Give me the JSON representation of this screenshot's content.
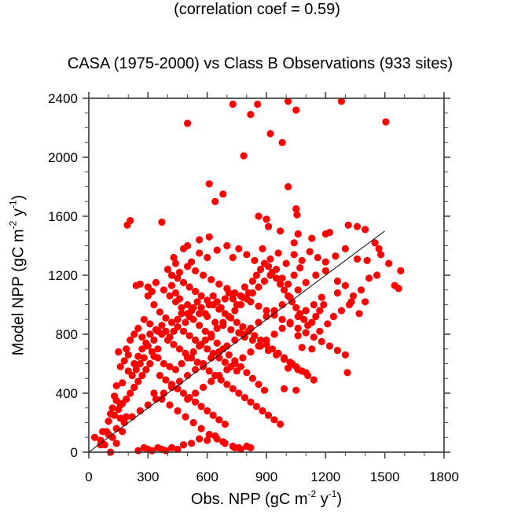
{
  "chart_data": {
    "type": "scatter",
    "subtitle": "(correlation coef =  0.59)",
    "title": "CASA (1975-2000) vs Class B Observations (933 sites)",
    "xlabel": {
      "main": "Obs. NPP (gC m",
      "exp1": "-2",
      "mid": " y",
      "exp2": "-1",
      "end": ")"
    },
    "ylabel": {
      "main": "Model NPP (gC m",
      "exp1": "-2",
      "mid": " y",
      "exp2": "-1",
      "end": ")"
    },
    "xlim": [
      0,
      1800
    ],
    "ylim": [
      0,
      2400
    ],
    "x_ticks": [
      0,
      300,
      600,
      900,
      1200,
      1500,
      1800
    ],
    "x_tick_labels": [
      "0",
      "300",
      "600",
      "900",
      "1200",
      "1500",
      "1800"
    ],
    "y_ticks": [
      0,
      400,
      800,
      1200,
      1600,
      2000,
      2400
    ],
    "y_tick_labels": [
      "0",
      "400",
      "800",
      "1200",
      "1600",
      "2000",
      "2400"
    ],
    "x_minor_step": 100,
    "y_minor_step": 100,
    "grid": false,
    "marker_color": "#ff0000",
    "line_color": "#000000",
    "one_to_one_line": {
      "x": [
        0,
        1500
      ],
      "y": [
        0,
        1500
      ]
    },
    "correlation_coef": 0.59,
    "n_sites": 933,
    "points": [
      [
        730,
        2360
      ],
      [
        855,
        2360
      ],
      [
        1010,
        2380
      ],
      [
        1050,
        2320
      ],
      [
        1280,
        2380
      ],
      [
        500,
        2230
      ],
      [
        820,
        2290
      ],
      [
        920,
        2160
      ],
      [
        980,
        2100
      ],
      [
        785,
        2010
      ],
      [
        1505,
        2240
      ],
      [
        1010,
        1800
      ],
      [
        610,
        1820
      ],
      [
        680,
        1750
      ],
      [
        640,
        1700
      ],
      [
        1050,
        1650
      ],
      [
        1055,
        1610
      ],
      [
        210,
        1570
      ],
      [
        195,
        1540
      ],
      [
        1315,
        1540
      ],
      [
        1360,
        1530
      ],
      [
        1400,
        1510
      ],
      [
        1220,
        1490
      ],
      [
        1200,
        1480
      ],
      [
        370,
        1560
      ],
      [
        860,
        1600
      ],
      [
        900,
        1580
      ],
      [
        910,
        1530
      ],
      [
        970,
        1500
      ],
      [
        1060,
        1480
      ],
      [
        1130,
        1450
      ],
      [
        1040,
        1420
      ],
      [
        560,
        1440
      ],
      [
        610,
        1460
      ],
      [
        500,
        1400
      ],
      [
        480,
        1380
      ],
      [
        430,
        1320
      ],
      [
        440,
        1280
      ],
      [
        520,
        1290
      ],
      [
        560,
        1350
      ],
      [
        600,
        1320
      ],
      [
        650,
        1370
      ],
      [
        700,
        1400
      ],
      [
        730,
        1320
      ],
      [
        760,
        1380
      ],
      [
        800,
        1340
      ],
      [
        840,
        1300
      ],
      [
        880,
        1380
      ],
      [
        920,
        1310
      ],
      [
        960,
        1350
      ],
      [
        1000,
        1280
      ],
      [
        1040,
        1340
      ],
      [
        1080,
        1300
      ],
      [
        1120,
        1360
      ],
      [
        1160,
        1320
      ],
      [
        1200,
        1290
      ],
      [
        1250,
        1330
      ],
      [
        1300,
        1380
      ],
      [
        1360,
        1310
      ],
      [
        1410,
        1300
      ],
      [
        1450,
        1420
      ],
      [
        1470,
        1380
      ],
      [
        1480,
        1340
      ],
      [
        1520,
        1280
      ],
      [
        1580,
        1230
      ],
      [
        1550,
        1130
      ],
      [
        1570,
        1110
      ],
      [
        1460,
        1200
      ],
      [
        1420,
        1180
      ],
      [
        1380,
        1100
      ],
      [
        1300,
        1130
      ],
      [
        1260,
        1080
      ],
      [
        1330,
        1020
      ],
      [
        1400,
        1020
      ],
      [
        1370,
        940
      ],
      [
        1260,
        1160
      ],
      [
        1200,
        1230
      ],
      [
        1150,
        1200
      ],
      [
        1100,
        1150
      ],
      [
        1060,
        1100
      ],
      [
        1020,
        1050
      ],
      [
        980,
        1000
      ],
      [
        940,
        960
      ],
      [
        900,
        920
      ],
      [
        860,
        880
      ],
      [
        820,
        840
      ],
      [
        780,
        800
      ],
      [
        740,
        760
      ],
      [
        700,
        720
      ],
      [
        660,
        680
      ],
      [
        620,
        640
      ],
      [
        580,
        600
      ],
      [
        540,
        560
      ],
      [
        500,
        520
      ],
      [
        460,
        480
      ],
      [
        420,
        440
      ],
      [
        380,
        400
      ],
      [
        340,
        360
      ],
      [
        300,
        320
      ],
      [
        260,
        280
      ],
      [
        220,
        240
      ],
      [
        180,
        200
      ],
      [
        140,
        160
      ],
      [
        100,
        120
      ],
      [
        60,
        80
      ],
      [
        30,
        100
      ],
      [
        90,
        140
      ],
      [
        120,
        300
      ],
      [
        140,
        350
      ],
      [
        160,
        320
      ],
      [
        190,
        240
      ],
      [
        130,
        380
      ],
      [
        170,
        470
      ],
      [
        200,
        550
      ],
      [
        230,
        600
      ],
      [
        250,
        650
      ],
      [
        270,
        700
      ],
      [
        300,
        720
      ],
      [
        320,
        680
      ],
      [
        350,
        640
      ],
      [
        380,
        600
      ],
      [
        410,
        580
      ],
      [
        440,
        560
      ],
      [
        470,
        600
      ],
      [
        500,
        640
      ],
      [
        530,
        680
      ],
      [
        560,
        720
      ],
      [
        590,
        760
      ],
      [
        620,
        800
      ],
      [
        650,
        840
      ],
      [
        680,
        880
      ],
      [
        710,
        920
      ],
      [
        740,
        960
      ],
      [
        770,
        1000
      ],
      [
        800,
        1040
      ],
      [
        830,
        1080
      ],
      [
        860,
        1120
      ],
      [
        890,
        1160
      ],
      [
        920,
        1200
      ],
      [
        950,
        1240
      ],
      [
        980,
        1180
      ],
      [
        1010,
        1140
      ],
      [
        1040,
        1200
      ],
      [
        1070,
        1250
      ],
      [
        280,
        900
      ],
      [
        310,
        870
      ],
      [
        340,
        830
      ],
      [
        370,
        800
      ],
      [
        400,
        760
      ],
      [
        430,
        730
      ],
      [
        460,
        700
      ],
      [
        490,
        670
      ],
      [
        520,
        640
      ],
      [
        550,
        610
      ],
      [
        580,
        580
      ],
      [
        610,
        550
      ],
      [
        640,
        520
      ],
      [
        670,
        490
      ],
      [
        700,
        460
      ],
      [
        730,
        430
      ],
      [
        760,
        400
      ],
      [
        790,
        370
      ],
      [
        820,
        340
      ],
      [
        850,
        310
      ],
      [
        880,
        280
      ],
      [
        910,
        250
      ],
      [
        940,
        220
      ],
      [
        970,
        190
      ],
      [
        260,
        1140
      ],
      [
        240,
        1130
      ],
      [
        300,
        1060
      ],
      [
        330,
        1000
      ],
      [
        360,
        950
      ],
      [
        390,
        910
      ],
      [
        420,
        880
      ],
      [
        450,
        850
      ],
      [
        480,
        820
      ],
      [
        510,
        790
      ],
      [
        540,
        760
      ],
      [
        570,
        730
      ],
      [
        600,
        700
      ],
      [
        630,
        670
      ],
      [
        660,
        640
      ],
      [
        690,
        610
      ],
      [
        720,
        580
      ],
      [
        750,
        550
      ],
      [
        450,
        1180
      ],
      [
        480,
        1150
      ],
      [
        510,
        1120
      ],
      [
        540,
        1090
      ],
      [
        570,
        1060
      ],
      [
        600,
        1030
      ],
      [
        630,
        1000
      ],
      [
        660,
        970
      ],
      [
        690,
        940
      ],
      [
        720,
        910
      ],
      [
        750,
        880
      ],
      [
        780,
        850
      ],
      [
        810,
        820
      ],
      [
        840,
        790
      ],
      [
        870,
        760
      ],
      [
        900,
        730
      ],
      [
        930,
        700
      ],
      [
        960,
        670
      ],
      [
        990,
        640
      ],
      [
        1020,
        610
      ],
      [
        1050,
        580
      ],
      [
        1080,
        550
      ],
      [
        1110,
        520
      ],
      [
        1140,
        490
      ],
      [
        400,
        1240
      ],
      [
        420,
        1200
      ],
      [
        460,
        1220
      ],
      [
        500,
        1260
      ],
      [
        540,
        1230
      ],
      [
        580,
        1200
      ],
      [
        620,
        1170
      ],
      [
        660,
        1140
      ],
      [
        700,
        1110
      ],
      [
        740,
        1080
      ],
      [
        780,
        1050
      ],
      [
        820,
        1020
      ],
      [
        860,
        990
      ],
      [
        900,
        960
      ],
      [
        940,
        930
      ],
      [
        980,
        900
      ],
      [
        1020,
        870
      ],
      [
        1060,
        840
      ],
      [
        1100,
        810
      ],
      [
        1140,
        780
      ],
      [
        1180,
        750
      ],
      [
        1220,
        720
      ],
      [
        1260,
        690
      ],
      [
        1300,
        660
      ],
      [
        380,
        1100
      ],
      [
        410,
        1060
      ],
      [
        440,
        1020
      ],
      [
        470,
        980
      ],
      [
        500,
        940
      ],
      [
        530,
        900
      ],
      [
        560,
        860
      ],
      [
        590,
        820
      ],
      [
        620,
        780
      ],
      [
        650,
        740
      ],
      [
        680,
        700
      ],
      [
        710,
        660
      ],
      [
        740,
        620
      ],
      [
        770,
        580
      ],
      [
        800,
        540
      ],
      [
        830,
        500
      ],
      [
        860,
        460
      ],
      [
        890,
        420
      ],
      [
        350,
        700
      ],
      [
        330,
        650
      ],
      [
        310,
        600
      ],
      [
        290,
        560
      ],
      [
        270,
        520
      ],
      [
        250,
        480
      ],
      [
        230,
        440
      ],
      [
        210,
        400
      ],
      [
        190,
        360
      ],
      [
        170,
        330
      ],
      [
        150,
        290
      ],
      [
        130,
        250
      ],
      [
        360,
        520
      ],
      [
        390,
        490
      ],
      [
        420,
        460
      ],
      [
        450,
        430
      ],
      [
        480,
        400
      ],
      [
        510,
        370
      ],
      [
        540,
        340
      ],
      [
        570,
        310
      ],
      [
        600,
        280
      ],
      [
        630,
        250
      ],
      [
        660,
        220
      ],
      [
        690,
        190
      ],
      [
        330,
        400
      ],
      [
        370,
        360
      ],
      [
        410,
        320
      ],
      [
        450,
        280
      ],
      [
        490,
        240
      ],
      [
        530,
        200
      ],
      [
        570,
        160
      ],
      [
        610,
        120
      ],
      [
        650,
        90
      ],
      [
        690,
        60
      ],
      [
        730,
        40
      ],
      [
        760,
        30
      ],
      [
        800,
        40
      ],
      [
        820,
        30
      ],
      [
        740,
        30
      ],
      [
        770,
        20
      ],
      [
        250,
        10
      ],
      [
        280,
        30
      ],
      [
        300,
        20
      ],
      [
        320,
        10
      ],
      [
        350,
        30
      ],
      [
        370,
        20
      ],
      [
        390,
        10
      ],
      [
        420,
        30
      ],
      [
        450,
        20
      ],
      [
        480,
        50
      ],
      [
        520,
        60
      ],
      [
        560,
        90
      ],
      [
        600,
        80
      ],
      [
        640,
        110
      ],
      [
        680,
        70
      ],
      [
        110,
        0
      ],
      [
        100,
        120
      ],
      [
        80,
        50
      ],
      [
        120,
        100
      ],
      [
        140,
        60
      ],
      [
        170,
        140
      ],
      [
        60,
        50
      ],
      [
        70,
        140
      ],
      [
        100,
        210
      ],
      [
        110,
        260
      ],
      [
        160,
        230
      ],
      [
        300,
        1120
      ],
      [
        320,
        1090
      ],
      [
        340,
        1150
      ],
      [
        420,
        1130
      ],
      [
        440,
        1080
      ],
      [
        460,
        1040
      ],
      [
        500,
        1000
      ],
      [
        520,
        960
      ],
      [
        560,
        940
      ],
      [
        600,
        920
      ],
      [
        640,
        880
      ],
      [
        680,
        860
      ],
      [
        720,
        830
      ],
      [
        760,
        810
      ],
      [
        790,
        780
      ],
      [
        830,
        760
      ],
      [
        870,
        720
      ],
      [
        910,
        690
      ],
      [
        950,
        660
      ],
      [
        990,
        630
      ],
      [
        1030,
        600
      ],
      [
        1060,
        560
      ],
      [
        1100,
        540
      ],
      [
        1130,
        700
      ],
      [
        1170,
        820
      ],
      [
        1210,
        870
      ],
      [
        1240,
        920
      ],
      [
        1280,
        960
      ],
      [
        1320,
        1000
      ],
      [
        1340,
        1060
      ],
      [
        1180,
        1050
      ],
      [
        1140,
        1000
      ],
      [
        1100,
        960
      ],
      [
        1060,
        920
      ],
      [
        1020,
        880
      ],
      [
        980,
        840
      ],
      [
        940,
        800
      ],
      [
        900,
        760
      ],
      [
        860,
        720
      ],
      [
        820,
        680
      ],
      [
        780,
        640
      ],
      [
        740,
        600
      ],
      [
        700,
        560
      ],
      [
        660,
        520
      ],
      [
        620,
        480
      ],
      [
        580,
        440
      ],
      [
        540,
        400
      ],
      [
        500,
        360
      ],
      [
        1310,
        540
      ],
      [
        1050,
        420
      ],
      [
        1080,
        710
      ],
      [
        990,
        430
      ],
      [
        1010,
        570
      ],
      [
        1060,
        790
      ],
      [
        280,
        640
      ],
      [
        260,
        600
      ],
      [
        240,
        560
      ],
      [
        220,
        520
      ],
      [
        200,
        660
      ],
      [
        180,
        620
      ],
      [
        160,
        580
      ],
      [
        150,
        680
      ],
      [
        140,
        450
      ],
      [
        190,
        700
      ],
      [
        210,
        760
      ],
      [
        230,
        800
      ],
      [
        250,
        840
      ],
      [
        270,
        780
      ],
      [
        290,
        740
      ],
      [
        310,
        800
      ],
      [
        330,
        760
      ],
      [
        350,
        820
      ],
      [
        370,
        860
      ],
      [
        390,
        820
      ],
      [
        410,
        780
      ],
      [
        430,
        820
      ],
      [
        450,
        900
      ],
      [
        470,
        940
      ],
      [
        490,
        880
      ],
      [
        510,
        920
      ],
      [
        530,
        980
      ],
      [
        550,
        1020
      ],
      [
        570,
        980
      ],
      [
        590,
        940
      ],
      [
        610,
        1000
      ],
      [
        630,
        1060
      ],
      [
        650,
        1020
      ],
      [
        670,
        980
      ],
      [
        690,
        1040
      ],
      [
        710,
        1080
      ],
      [
        730,
        1040
      ],
      [
        750,
        1000
      ],
      [
        770,
        1060
      ],
      [
        790,
        1120
      ],
      [
        810,
        1080
      ],
      [
        830,
        1160
      ],
      [
        850,
        1200
      ],
      [
        870,
        1240
      ],
      [
        890,
        1280
      ],
      [
        910,
        1260
      ],
      [
        930,
        1220
      ],
      [
        950,
        1180
      ],
      [
        970,
        1140
      ],
      [
        990,
        1100
      ],
      [
        1010,
        1060
      ],
      [
        1030,
        1020
      ],
      [
        1050,
        980
      ],
      [
        1070,
        940
      ],
      [
        1090,
        900
      ],
      [
        1110,
        860
      ],
      [
        1130,
        880
      ],
      [
        1150,
        920
      ],
      [
        1170,
        960
      ],
      [
        1190,
        1000
      ]
    ]
  }
}
